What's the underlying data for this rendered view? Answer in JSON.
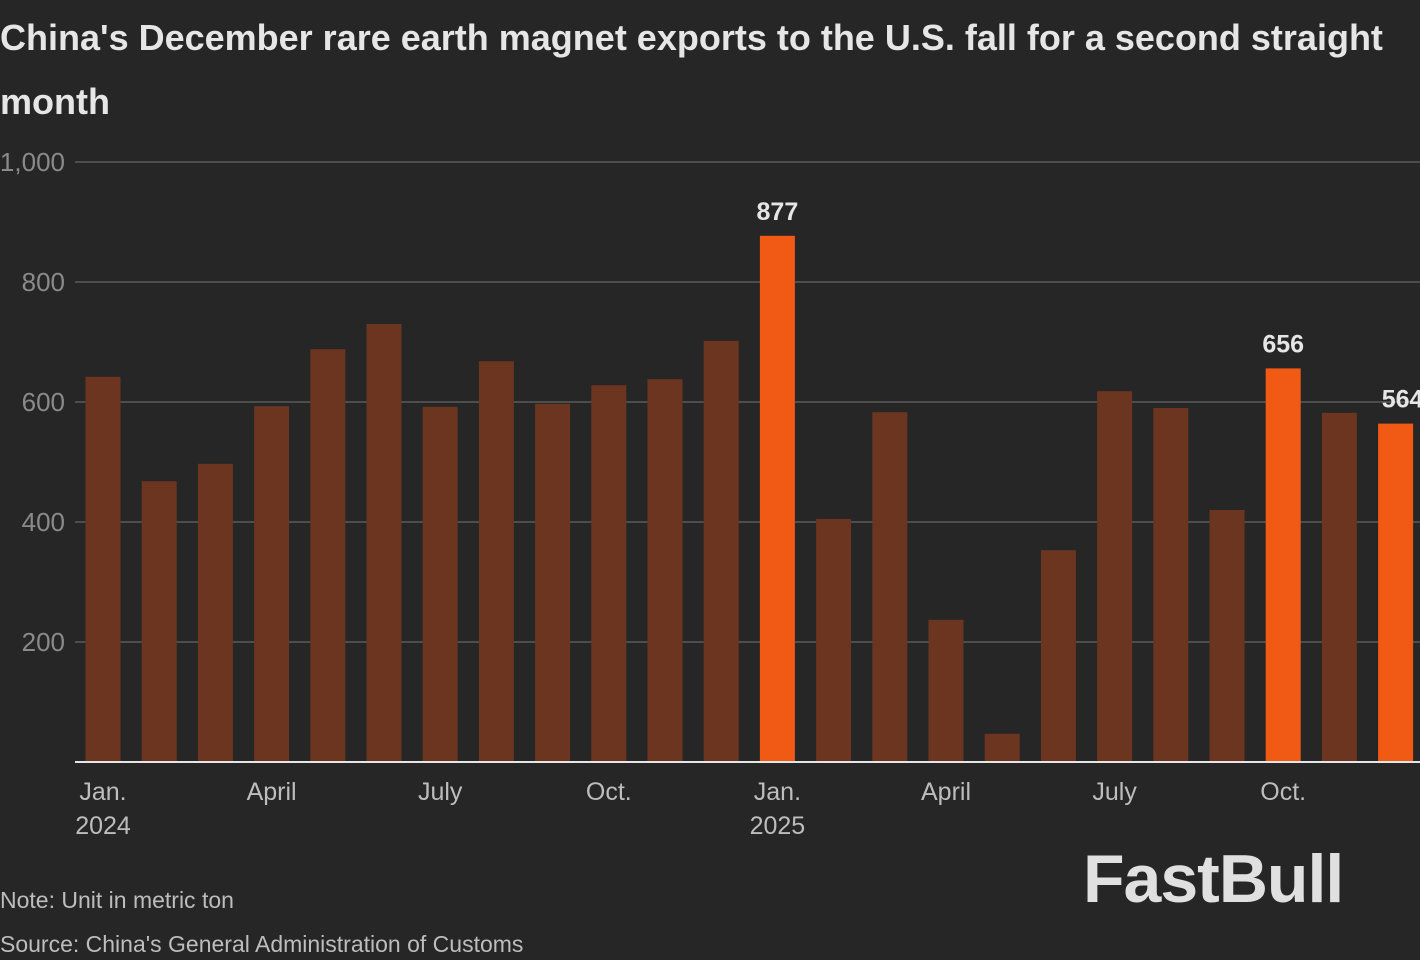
{
  "chart_data": {
    "type": "bar",
    "title": "China's December rare earth magnet exports to the U.S. fall for a second straight month",
    "xlabel": "",
    "ylabel": "",
    "ylim": [
      0,
      1000
    ],
    "yticks": [
      "200",
      "400",
      "600",
      "800",
      "1,000"
    ],
    "ytick_values": [
      200,
      400,
      600,
      800,
      1000
    ],
    "grid": true,
    "categories": [
      "Jan 2024",
      "Feb 2024",
      "Mar 2024",
      "Apr 2024",
      "May 2024",
      "Jun 2024",
      "Jul 2024",
      "Aug 2024",
      "Sep 2024",
      "Oct 2024",
      "Nov 2024",
      "Dec 2024",
      "Jan 2025",
      "Feb 2025",
      "Mar 2025",
      "Apr 2025",
      "May 2025",
      "Jun 2025",
      "Jul 2025",
      "Aug 2025",
      "Sep 2025",
      "Oct 2025",
      "Nov 2025",
      "Dec 2025"
    ],
    "values": [
      642,
      468,
      497,
      593,
      688,
      730,
      592,
      668,
      597,
      628,
      638,
      702,
      877,
      405,
      583,
      237,
      47,
      353,
      618,
      590,
      420,
      656,
      582,
      564
    ],
    "highlighted": [
      12,
      21,
      23
    ],
    "data_labels": {
      "12": "877",
      "21": "656",
      "23": "564"
    },
    "xtick_labels": [
      {
        "index": 0,
        "label": "Jan.",
        "sub": "2024"
      },
      {
        "index": 3,
        "label": "April",
        "sub": ""
      },
      {
        "index": 6,
        "label": "July",
        "sub": ""
      },
      {
        "index": 9,
        "label": "Oct.",
        "sub": ""
      },
      {
        "index": 12,
        "label": "Jan.",
        "sub": "2025"
      },
      {
        "index": 15,
        "label": "April",
        "sub": ""
      },
      {
        "index": 18,
        "label": "July",
        "sub": ""
      },
      {
        "index": 21,
        "label": "Oct.",
        "sub": ""
      }
    ],
    "colors": {
      "bar": "#6b3520",
      "highlight": "#f05a14",
      "grid": "#5a5a5a",
      "axis": "#e6e6e6"
    }
  },
  "note": "Note: Unit in metric ton",
  "source": "Source: China's General Administration of Customs",
  "logo": "FastBull"
}
